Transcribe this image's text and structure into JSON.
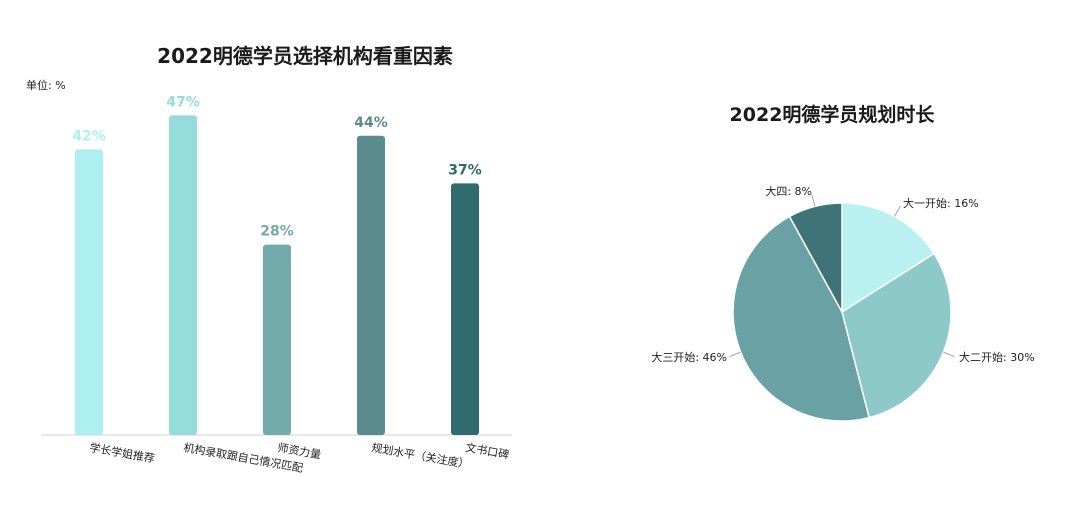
{
  "chart_data": [
    {
      "type": "bar",
      "title": "2022明德学员选择机构看重因素",
      "unit_label": "单位: %",
      "categories": [
        "学长学姐推荐",
        "机构录取跟自己情况匹配",
        "师资力量",
        "规划水平（关注度）",
        "文书口碑"
      ],
      "values": [
        42,
        47,
        28,
        44,
        37
      ],
      "value_labels": [
        "42%",
        "47%",
        "28%",
        "44%",
        "37%"
      ],
      "ylim": [
        0,
        50
      ],
      "grid": false,
      "legend": "none",
      "colors": [
        "#aef0ef",
        "#95dcdb",
        "#72abaa",
        "#5a8c8d",
        "#306b6d"
      ]
    },
    {
      "type": "pie",
      "title": "2022明德学员规划时长",
      "labels": [
        "大一开始",
        "大二开始",
        "大三开始",
        "大四"
      ],
      "values": [
        16,
        30,
        46,
        8
      ],
      "slice_labels": [
        "大一开始: 16%",
        "大二开始: 30%",
        "大三开始: 46%",
        "大四: 8%"
      ],
      "colors": [
        "#b8f1ef",
        "#8ec9ca",
        "#6aa1a4",
        "#3e7378"
      ],
      "legend": "none"
    }
  ]
}
